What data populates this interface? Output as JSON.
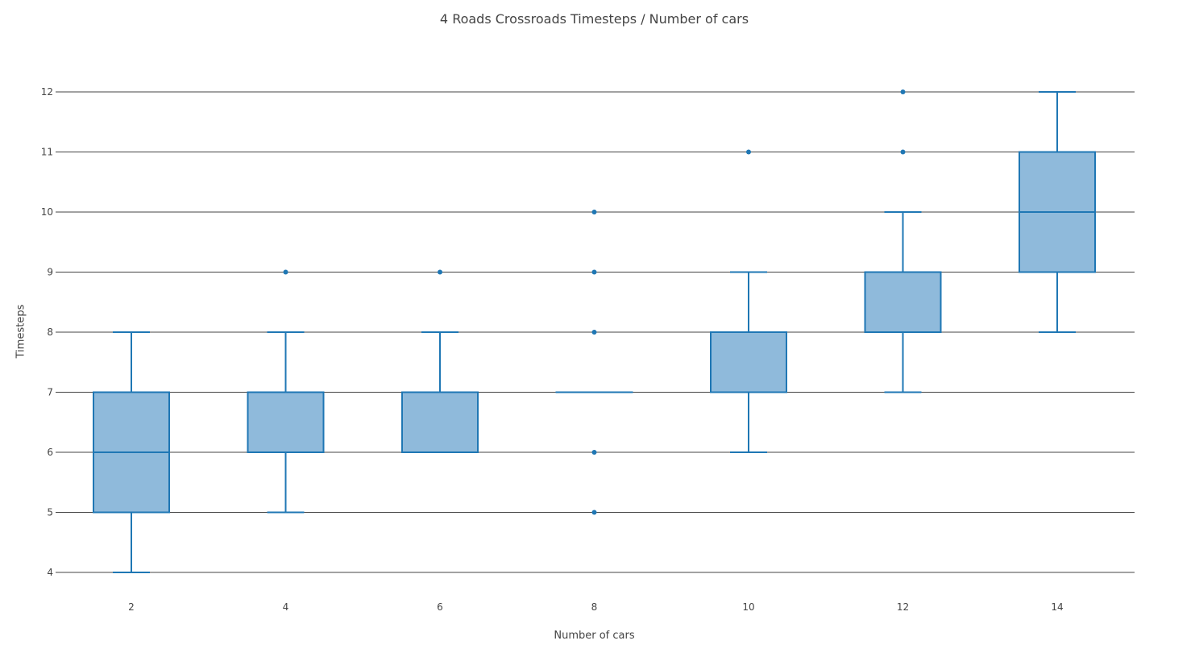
{
  "chart_data": {
    "type": "box",
    "title": "4 Roads Crossroads Timesteps / Number of cars",
    "xlabel": "Number of cars",
    "ylabel": "Timesteps",
    "categories": [
      "2",
      "4",
      "6",
      "8",
      "10",
      "12",
      "14"
    ],
    "ylim": [
      3.7,
      12.35
    ],
    "y_ticks": [
      4,
      5,
      6,
      7,
      8,
      9,
      10,
      11,
      12
    ],
    "grid": true,
    "colors": {
      "box_fill": "#8fbadb",
      "box_line": "#1f77b4",
      "grid": "#444444"
    },
    "boxes": [
      {
        "category": "2",
        "lower_whisker": 4,
        "q1": 5,
        "median": 6,
        "q3": 7,
        "upper_whisker": 8,
        "outliers": []
      },
      {
        "category": "4",
        "lower_whisker": 5,
        "q1": 6,
        "median": 7,
        "q3": 7,
        "upper_whisker": 8,
        "outliers": [
          9
        ]
      },
      {
        "category": "6",
        "lower_whisker": 6,
        "q1": 6,
        "median": 6,
        "q3": 7,
        "upper_whisker": 8,
        "outliers": [
          9
        ]
      },
      {
        "category": "8",
        "lower_whisker": 7,
        "q1": 7,
        "median": 7,
        "q3": 7,
        "upper_whisker": 7,
        "outliers": [
          5,
          6,
          8,
          9,
          10
        ]
      },
      {
        "category": "10",
        "lower_whisker": 6,
        "q1": 7,
        "median": 8,
        "q3": 8,
        "upper_whisker": 9,
        "outliers": [
          11
        ]
      },
      {
        "category": "12",
        "lower_whisker": 7,
        "q1": 8,
        "median": 8,
        "q3": 9,
        "upper_whisker": 10,
        "outliers": [
          11,
          12
        ]
      },
      {
        "category": "14",
        "lower_whisker": 8,
        "q1": 9,
        "median": 10,
        "q3": 11,
        "upper_whisker": 12,
        "outliers": []
      }
    ]
  }
}
